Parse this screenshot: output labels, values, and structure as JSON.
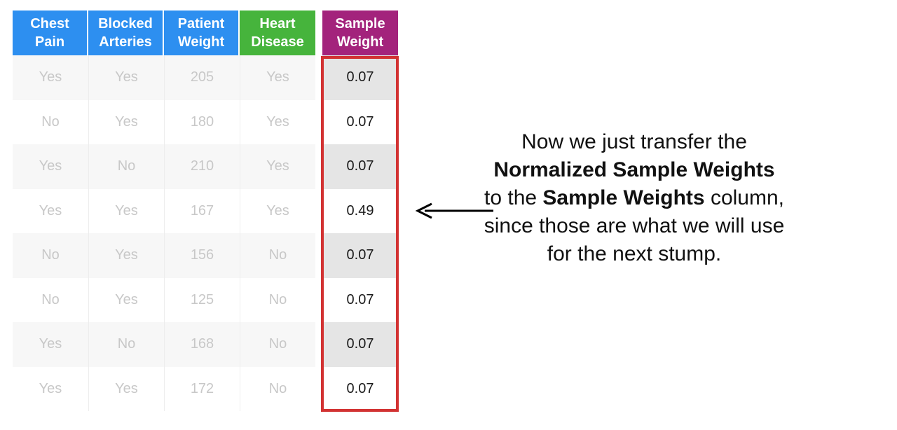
{
  "table": {
    "headers": [
      {
        "label": "Chest\nPain",
        "color": "#2d8ff0"
      },
      {
        "label": "Blocked\nArteries",
        "color": "#2d8ff0"
      },
      {
        "label": "Patient\nWeight",
        "color": "#2d8ff0"
      },
      {
        "label": "Heart\nDisease",
        "color": "#46b43c"
      }
    ],
    "rows": [
      [
        "Yes",
        "Yes",
        "205",
        "Yes"
      ],
      [
        "No",
        "Yes",
        "180",
        "Yes"
      ],
      [
        "Yes",
        "No",
        "210",
        "Yes"
      ],
      [
        "Yes",
        "Yes",
        "167",
        "Yes"
      ],
      [
        "No",
        "Yes",
        "156",
        "No"
      ],
      [
        "No",
        "Yes",
        "125",
        "No"
      ],
      [
        "Yes",
        "No",
        "168",
        "No"
      ],
      [
        "Yes",
        "Yes",
        "172",
        "No"
      ]
    ]
  },
  "sample_weight": {
    "header": "Sample\nWeight",
    "color": "#a3237c",
    "highlight_color": "#d23232",
    "values": [
      "0.07",
      "0.07",
      "0.07",
      "0.49",
      "0.07",
      "0.07",
      "0.07",
      "0.07"
    ]
  },
  "explanation": {
    "part1": "Now we just transfer the",
    "bold1": "Normalized Sample Weights",
    "part2": "to the",
    "bold2": "Sample Weights",
    "part3": "column, since those are what we will use for the next stump."
  }
}
